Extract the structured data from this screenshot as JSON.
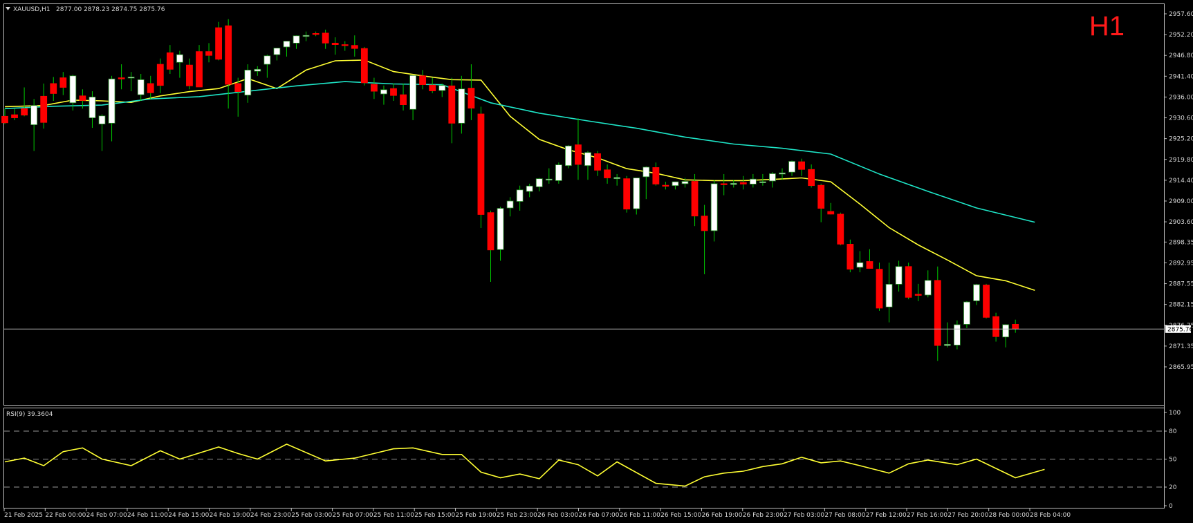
{
  "header": {
    "symbol": "XAUUSD,H1",
    "ohlc": "2877.00 2878.23 2874.75 2875.76",
    "timeframe_badge": "H1"
  },
  "rsi_panel": {
    "label": "RSI(9) 39.3604"
  },
  "colors": {
    "background": "#000000",
    "bull_candle": "#ffffff",
    "bear_candle": "#ff0000",
    "wick": "#00cc00",
    "ma_fast": "#ffff33",
    "ma_slow": "#1ee6c8",
    "rsi_line": "#ffff33",
    "grid_dash": "#9a9a9a",
    "axis_text": "#d8d8d8",
    "current_price_line": "#b0b0b0"
  },
  "chart_data": [
    {
      "type": "candlestick",
      "title": "XAUUSD,H1",
      "y_axis_labels": [
        "2957.60",
        "2952.20",
        "2946.80",
        "2941.40",
        "2936.00",
        "2930.60",
        "2925.20",
        "2919.80",
        "2914.40",
        "2909.00",
        "2903.60",
        "2898.35",
        "2892.95",
        "2887.55",
        "2882.15",
        "2876.75",
        "2871.35",
        "2865.95"
      ],
      "ylim": [
        2865.95,
        2957.6
      ],
      "current_price_label": "2875.76",
      "current_price": 2875.76,
      "x_axis_labels": [
        "21 Feb 2025",
        "22 Feb 00:00",
        "24 Feb 07:00",
        "24 Feb 11:00",
        "24 Feb 15:00",
        "24 Feb 19:00",
        "24 Feb 23:00",
        "25 Feb 03:00",
        "25 Feb 07:00",
        "25 Feb 11:00",
        "25 Feb 15:00",
        "25 Feb 19:00",
        "25 Feb 23:00",
        "26 Feb 03:00",
        "26 Feb 07:00",
        "26 Feb 11:00",
        "26 Feb 15:00",
        "26 Feb 19:00",
        "26 Feb 23:00",
        "27 Feb 03:00",
        "27 Feb 08:00",
        "27 Feb 12:00",
        "27 Feb 16:00",
        "27 Feb 20:00",
        "28 Feb 00:00",
        "28 Feb 04:00"
      ],
      "candles": [
        {
          "o": 2931.0,
          "h": 2933.0,
          "l": 2929.0,
          "c": 2929.3
        },
        {
          "o": 2931.4,
          "h": 2933.0,
          "l": 2930.0,
          "c": 2930.6
        },
        {
          "o": 2933.0,
          "h": 2938.5,
          "l": 2931.0,
          "c": 2931.3
        },
        {
          "o": 2928.8,
          "h": 2935.5,
          "l": 2922.0,
          "c": 2933.8
        },
        {
          "o": 2936.2,
          "h": 2939.5,
          "l": 2927.8,
          "c": 2929.4
        },
        {
          "o": 2939.5,
          "h": 2941.2,
          "l": 2935.0,
          "c": 2936.9
        },
        {
          "o": 2941.0,
          "h": 2942.5,
          "l": 2936.5,
          "c": 2938.5
        },
        {
          "o": 2934.5,
          "h": 2941.8,
          "l": 2932.5,
          "c": 2941.5
        },
        {
          "o": 2936.3,
          "h": 2938.0,
          "l": 2933.0,
          "c": 2935.1
        },
        {
          "o": 2930.6,
          "h": 2937.5,
          "l": 2928.0,
          "c": 2936.0
        },
        {
          "o": 2929.0,
          "h": 2931.5,
          "l": 2922.0,
          "c": 2931.1
        },
        {
          "o": 2929.2,
          "h": 2941.5,
          "l": 2924.5,
          "c": 2940.7
        },
        {
          "o": 2941.0,
          "h": 2944.5,
          "l": 2938.0,
          "c": 2940.7
        },
        {
          "o": 2941.0,
          "h": 2942.5,
          "l": 2937.5,
          "c": 2941.2
        },
        {
          "o": 2936.6,
          "h": 2942.0,
          "l": 2935.0,
          "c": 2940.5
        },
        {
          "o": 2939.5,
          "h": 2941.5,
          "l": 2935.5,
          "c": 2937.1
        },
        {
          "o": 2944.5,
          "h": 2946.0,
          "l": 2937.0,
          "c": 2939.0
        },
        {
          "o": 2947.5,
          "h": 2949.5,
          "l": 2942.0,
          "c": 2943.2
        },
        {
          "o": 2945.0,
          "h": 2948.0,
          "l": 2941.0,
          "c": 2947.0
        },
        {
          "o": 2944.3,
          "h": 2946.0,
          "l": 2938.0,
          "c": 2938.9
        },
        {
          "o": 2947.8,
          "h": 2949.5,
          "l": 2939.5,
          "c": 2938.6
        },
        {
          "o": 2947.8,
          "h": 2950.0,
          "l": 2945.0,
          "c": 2946.8
        },
        {
          "o": 2954.0,
          "h": 2955.5,
          "l": 2945.5,
          "c": 2945.8
        },
        {
          "o": 2954.5,
          "h": 2956.2,
          "l": 2933.0,
          "c": 2939.3
        },
        {
          "o": 2939.5,
          "h": 2941.0,
          "l": 2930.9,
          "c": 2937.4
        },
        {
          "o": 2936.5,
          "h": 2944.5,
          "l": 2934.5,
          "c": 2943.0
        },
        {
          "o": 2942.7,
          "h": 2944.0,
          "l": 2941.5,
          "c": 2943.2
        },
        {
          "o": 2944.5,
          "h": 2947.0,
          "l": 2941.0,
          "c": 2946.7
        },
        {
          "o": 2947.0,
          "h": 2948.5,
          "l": 2945.5,
          "c": 2948.7
        },
        {
          "o": 2949.0,
          "h": 2950.5,
          "l": 2946.5,
          "c": 2950.5
        },
        {
          "o": 2950.0,
          "h": 2952.0,
          "l": 2948.5,
          "c": 2951.9
        },
        {
          "o": 2952.0,
          "h": 2953.0,
          "l": 2950.5,
          "c": 2952.0
        },
        {
          "o": 2952.5,
          "h": 2953.0,
          "l": 2951.8,
          "c": 2952.3
        },
        {
          "o": 2952.6,
          "h": 2953.5,
          "l": 2948.5,
          "c": 2950.0
        },
        {
          "o": 2950.0,
          "h": 2951.5,
          "l": 2947.0,
          "c": 2949.6
        },
        {
          "o": 2949.6,
          "h": 2950.5,
          "l": 2948.0,
          "c": 2949.4
        },
        {
          "o": 2949.4,
          "h": 2952.0,
          "l": 2946.5,
          "c": 2948.6
        },
        {
          "o": 2948.6,
          "h": 2949.0,
          "l": 2939.0,
          "c": 2939.7
        },
        {
          "o": 2939.3,
          "h": 2941.0,
          "l": 2935.5,
          "c": 2937.5
        },
        {
          "o": 2936.8,
          "h": 2939.0,
          "l": 2934.0,
          "c": 2937.9
        },
        {
          "o": 2938.2,
          "h": 2939.5,
          "l": 2935.0,
          "c": 2936.4
        },
        {
          "o": 2936.6,
          "h": 2939.5,
          "l": 2932.5,
          "c": 2934.0
        },
        {
          "o": 2932.8,
          "h": 2941.5,
          "l": 2930.0,
          "c": 2941.6
        },
        {
          "o": 2941.5,
          "h": 2943.0,
          "l": 2938.0,
          "c": 2939.2
        },
        {
          "o": 2939.1,
          "h": 2941.0,
          "l": 2937.0,
          "c": 2937.6
        },
        {
          "o": 2937.7,
          "h": 2939.5,
          "l": 2936.0,
          "c": 2939.0
        },
        {
          "o": 2938.9,
          "h": 2941.0,
          "l": 2924.0,
          "c": 2929.2
        },
        {
          "o": 2929.2,
          "h": 2941.5,
          "l": 2926.5,
          "c": 2938.1
        },
        {
          "o": 2938.3,
          "h": 2944.5,
          "l": 2930.0,
          "c": 2933.1
        },
        {
          "o": 2931.6,
          "h": 2933.5,
          "l": 2902.0,
          "c": 2905.5
        },
        {
          "o": 2906.0,
          "h": 2906.5,
          "l": 2888.0,
          "c": 2896.3
        },
        {
          "o": 2896.4,
          "h": 2907.5,
          "l": 2893.5,
          "c": 2907.1
        },
        {
          "o": 2907.2,
          "h": 2910.0,
          "l": 2905.0,
          "c": 2909.0
        },
        {
          "o": 2908.9,
          "h": 2913.0,
          "l": 2906.5,
          "c": 2911.9
        },
        {
          "o": 2911.5,
          "h": 2913.5,
          "l": 2910.0,
          "c": 2912.9
        },
        {
          "o": 2912.7,
          "h": 2915.0,
          "l": 2911.5,
          "c": 2914.8
        },
        {
          "o": 2914.5,
          "h": 2917.5,
          "l": 2913.5,
          "c": 2914.7
        },
        {
          "o": 2914.3,
          "h": 2919.0,
          "l": 2913.5,
          "c": 2918.4
        },
        {
          "o": 2918.2,
          "h": 2923.5,
          "l": 2917.5,
          "c": 2923.3
        },
        {
          "o": 2923.6,
          "h": 2930.5,
          "l": 2914.5,
          "c": 2918.5
        },
        {
          "o": 2918.2,
          "h": 2922.0,
          "l": 2914.5,
          "c": 2921.6
        },
        {
          "o": 2921.3,
          "h": 2922.0,
          "l": 2915.5,
          "c": 2917.0
        },
        {
          "o": 2917.1,
          "h": 2918.5,
          "l": 2913.5,
          "c": 2915.0
        },
        {
          "o": 2914.8,
          "h": 2916.0,
          "l": 2913.0,
          "c": 2915.1
        },
        {
          "o": 2914.8,
          "h": 2915.5,
          "l": 2906.0,
          "c": 2906.9
        },
        {
          "o": 2907.0,
          "h": 2915.0,
          "l": 2905.5,
          "c": 2915.0
        },
        {
          "o": 2915.3,
          "h": 2918.0,
          "l": 2909.5,
          "c": 2917.8
        },
        {
          "o": 2917.7,
          "h": 2919.0,
          "l": 2913.0,
          "c": 2913.4
        },
        {
          "o": 2913.1,
          "h": 2914.0,
          "l": 2912.0,
          "c": 2913.0
        },
        {
          "o": 2913.0,
          "h": 2914.0,
          "l": 2912.0,
          "c": 2914.0
        },
        {
          "o": 2913.5,
          "h": 2915.0,
          "l": 2912.5,
          "c": 2914.1
        },
        {
          "o": 2914.1,
          "h": 2916.0,
          "l": 2902.5,
          "c": 2905.1
        },
        {
          "o": 2905.1,
          "h": 2908.0,
          "l": 2890.0,
          "c": 2901.3
        },
        {
          "o": 2901.3,
          "h": 2914.5,
          "l": 2898.5,
          "c": 2913.5
        },
        {
          "o": 2913.5,
          "h": 2916.0,
          "l": 2910.5,
          "c": 2913.4
        },
        {
          "o": 2913.3,
          "h": 2914.5,
          "l": 2912.5,
          "c": 2913.6
        },
        {
          "o": 2913.8,
          "h": 2915.5,
          "l": 2912.0,
          "c": 2913.4
        },
        {
          "o": 2913.4,
          "h": 2916.0,
          "l": 2912.5,
          "c": 2914.7
        },
        {
          "o": 2914.0,
          "h": 2916.0,
          "l": 2913.0,
          "c": 2914.0
        },
        {
          "o": 2914.2,
          "h": 2916.5,
          "l": 2912.5,
          "c": 2916.1
        },
        {
          "o": 2916.0,
          "h": 2917.5,
          "l": 2914.5,
          "c": 2916.3
        },
        {
          "o": 2916.5,
          "h": 2919.5,
          "l": 2915.5,
          "c": 2919.3
        },
        {
          "o": 2919.2,
          "h": 2920.0,
          "l": 2915.5,
          "c": 2917.2
        },
        {
          "o": 2917.2,
          "h": 2918.5,
          "l": 2912.5,
          "c": 2913.0
        },
        {
          "o": 2913.1,
          "h": 2913.5,
          "l": 2903.5,
          "c": 2907.1
        },
        {
          "o": 2906.3,
          "h": 2908.5,
          "l": 2905.5,
          "c": 2905.6
        },
        {
          "o": 2905.6,
          "h": 2906.0,
          "l": 2897.5,
          "c": 2897.8
        },
        {
          "o": 2897.8,
          "h": 2899.0,
          "l": 2890.5,
          "c": 2891.3
        },
        {
          "o": 2891.8,
          "h": 2896.0,
          "l": 2890.5,
          "c": 2893.0
        },
        {
          "o": 2893.3,
          "h": 2896.5,
          "l": 2892.0,
          "c": 2891.5
        },
        {
          "o": 2891.3,
          "h": 2893.0,
          "l": 2880.5,
          "c": 2881.2
        },
        {
          "o": 2881.5,
          "h": 2893.0,
          "l": 2877.5,
          "c": 2887.4
        },
        {
          "o": 2887.4,
          "h": 2893.5,
          "l": 2885.5,
          "c": 2892.0
        },
        {
          "o": 2892.0,
          "h": 2893.0,
          "l": 2883.5,
          "c": 2884.0
        },
        {
          "o": 2884.8,
          "h": 2887.5,
          "l": 2883.0,
          "c": 2884.5
        },
        {
          "o": 2884.6,
          "h": 2891.0,
          "l": 2884.0,
          "c": 2888.4
        },
        {
          "o": 2888.4,
          "h": 2892.0,
          "l": 2867.5,
          "c": 2871.5
        },
        {
          "o": 2871.5,
          "h": 2877.5,
          "l": 2871.0,
          "c": 2871.8
        },
        {
          "o": 2871.6,
          "h": 2878.0,
          "l": 2870.5,
          "c": 2876.9
        },
        {
          "o": 2877.0,
          "h": 2883.0,
          "l": 2876.0,
          "c": 2882.8
        },
        {
          "o": 2883.1,
          "h": 2887.5,
          "l": 2882.0,
          "c": 2887.3
        },
        {
          "o": 2887.2,
          "h": 2887.5,
          "l": 2878.5,
          "c": 2878.8
        },
        {
          "o": 2879.0,
          "h": 2880.0,
          "l": 2872.5,
          "c": 2873.8
        },
        {
          "o": 2873.7,
          "h": 2877.0,
          "l": 2871.0,
          "c": 2876.9
        },
        {
          "o": 2877.0,
          "h": 2878.2,
          "l": 2874.8,
          "c": 2875.8
        }
      ],
      "series": [
        {
          "color": "#ffff33",
          "x": [
            0,
            4,
            7,
            10,
            13,
            16,
            19,
            22,
            25,
            28,
            31,
            34,
            37,
            40,
            43,
            46,
            49,
            52,
            55,
            58,
            61,
            64,
            67,
            70,
            73,
            76,
            79,
            82,
            85,
            88,
            91,
            94,
            97,
            100,
            103,
            106
          ],
          "values": [
            2933.5,
            2933.8,
            2935.2,
            2935.0,
            2934.6,
            2936.3,
            2937.4,
            2938.2,
            2940.8,
            2938.2,
            2943.0,
            2945.4,
            2945.6,
            2942.6,
            2941.5,
            2940.5,
            2940.4,
            2931.0,
            2925.0,
            2922.3,
            2920.2,
            2917.4,
            2916.2,
            2914.5,
            2914.3,
            2914.3,
            2914.6,
            2915.0,
            2914.0,
            2908.2,
            2902.1,
            2897.6,
            2893.7,
            2889.6,
            2888.3,
            2885.8
          ]
        },
        {
          "color": "#1ee6c8",
          "x": [
            0,
            5,
            10,
            15,
            20,
            25,
            30,
            35,
            40,
            45,
            50,
            55,
            60,
            65,
            70,
            75,
            80,
            85,
            90,
            95,
            100,
            106
          ],
          "values": [
            2933.0,
            2933.6,
            2933.9,
            2935.5,
            2936.1,
            2937.5,
            2938.9,
            2940.0,
            2939.4,
            2939.2,
            2934.5,
            2931.8,
            2929.8,
            2927.9,
            2925.6,
            2923.8,
            2922.7,
            2921.2,
            2916.0,
            2911.5,
            2907.2,
            2903.5
          ]
        }
      ]
    },
    {
      "type": "line",
      "title": "RSI(9) 39.3604",
      "ylim": [
        0,
        100
      ],
      "y_axis_labels": [
        "100",
        "80",
        "50",
        "20",
        "0"
      ],
      "levels": [
        20,
        50,
        80
      ],
      "x": [
        0,
        2,
        4,
        6,
        8,
        10,
        13,
        16,
        18,
        22,
        24,
        26,
        29,
        33,
        36,
        38,
        40,
        42,
        45,
        47,
        49,
        51,
        53,
        55,
        57,
        59,
        61,
        63,
        67,
        70,
        72,
        74,
        76,
        78,
        80,
        82,
        84,
        86,
        88,
        91,
        93,
        95,
        98,
        100,
        104,
        107
      ],
      "values": [
        47,
        51,
        43,
        58,
        62,
        50,
        43,
        59,
        50,
        63,
        56,
        50,
        66,
        48,
        51,
        56,
        61,
        62,
        55,
        55,
        36,
        30,
        34,
        29,
        49,
        44,
        32,
        47,
        24,
        21,
        31,
        35,
        37,
        42,
        45,
        52,
        46,
        48,
        43,
        35,
        45,
        49,
        44,
        50,
        30,
        39
      ]
    }
  ]
}
